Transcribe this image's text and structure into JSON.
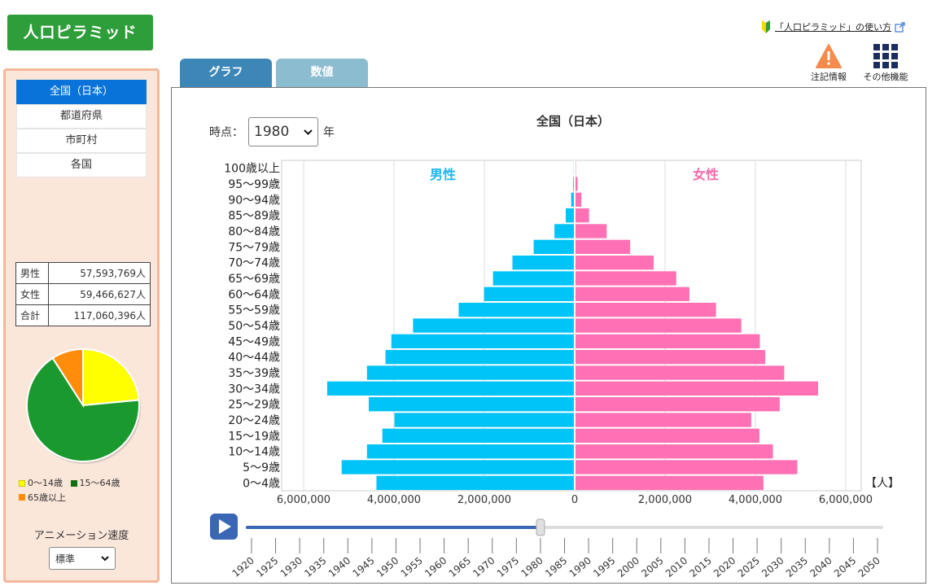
{
  "app": {
    "title": "人口ピラミッド",
    "help_link": "「人口ピラミッド」の使い方"
  },
  "tools": [
    {
      "label": "注記情報",
      "icon": "warning-icon"
    },
    {
      "label": "その他機能",
      "icon": "grid-icon"
    }
  ],
  "region_tabs": [
    "全国（日本）",
    "都道府県",
    "市町村",
    "各国"
  ],
  "region_active": 0,
  "population_table": [
    {
      "label": "男性",
      "value": "57,593,769人"
    },
    {
      "label": "女性",
      "value": "59,466,627人"
    },
    {
      "label": "合計",
      "value": "117,060,396人"
    }
  ],
  "pie": {
    "slices": [
      {
        "label": "0～14歳",
        "value": 23.5,
        "color": "#ffff00"
      },
      {
        "label": "15～64歳",
        "value": 67.4,
        "color": "#1a9a2e"
      },
      {
        "label": "65歳以上",
        "value": 9.1,
        "color": "#ff8c0a"
      }
    ],
    "legend_colors": [
      "#ffff00",
      "#107010",
      "#ff8c0a"
    ]
  },
  "animation": {
    "label": "アニメーション速度",
    "value": "標準"
  },
  "view_tabs": [
    "グラフ",
    "数値"
  ],
  "time_label": "時点：",
  "year": "1980",
  "year_unit": "年",
  "slider": {
    "years": [
      "1920",
      "1925",
      "1930",
      "1935",
      "1940",
      "1945",
      "1950",
      "1955",
      "1960",
      "1965",
      "1970",
      "1975",
      "1980",
      "1985",
      "1990",
      "1995",
      "2000",
      "2005",
      "2010",
      "2015",
      "2020",
      "2025",
      "2030",
      "2035",
      "2040",
      "2045",
      "2050"
    ],
    "current": "1980"
  },
  "chart_data": {
    "type": "bar",
    "title": "全国（日本）",
    "male_label": "男性",
    "female_label": "女性",
    "unit": "【人】",
    "xlim": [
      -6000000,
      6000000
    ],
    "x_ticks": [
      "6,000,000",
      "4,000,000",
      "2,000,000",
      "0",
      "2,000,000",
      "4,000,000",
      "6,000,000"
    ],
    "male_color": "#00c3f7",
    "female_color": "#ff70b4",
    "categories": [
      "100歳以上",
      "95～99歳",
      "90～94歳",
      "85～89歳",
      "80～84歳",
      "75～79歳",
      "70～74歳",
      "65～69歳",
      "60～64歳",
      "55～59歳",
      "50～54歳",
      "45～49歳",
      "40～44歳",
      "35～39歳",
      "30～34歳",
      "25～29歳",
      "20～24歳",
      "15～19歳",
      "10～14歳",
      "5～9歳",
      "0～4歳"
    ],
    "series": [
      {
        "name": "男性",
        "values": [
          3000,
          15000,
          60000,
          180000,
          430000,
          890000,
          1360000,
          1790000,
          1990000,
          2550000,
          3560000,
          4040000,
          4170000,
          4580000,
          5460000,
          4540000,
          3970000,
          4240000,
          4580000,
          5140000,
          4370000
        ]
      },
      {
        "name": "女性",
        "values": [
          8000,
          45000,
          130000,
          300000,
          690000,
          1210000,
          1730000,
          2230000,
          2520000,
          3110000,
          3670000,
          4080000,
          4200000,
          4620000,
          5370000,
          4520000,
          3890000,
          4070000,
          4370000,
          4910000,
          4160000
        ]
      }
    ]
  }
}
